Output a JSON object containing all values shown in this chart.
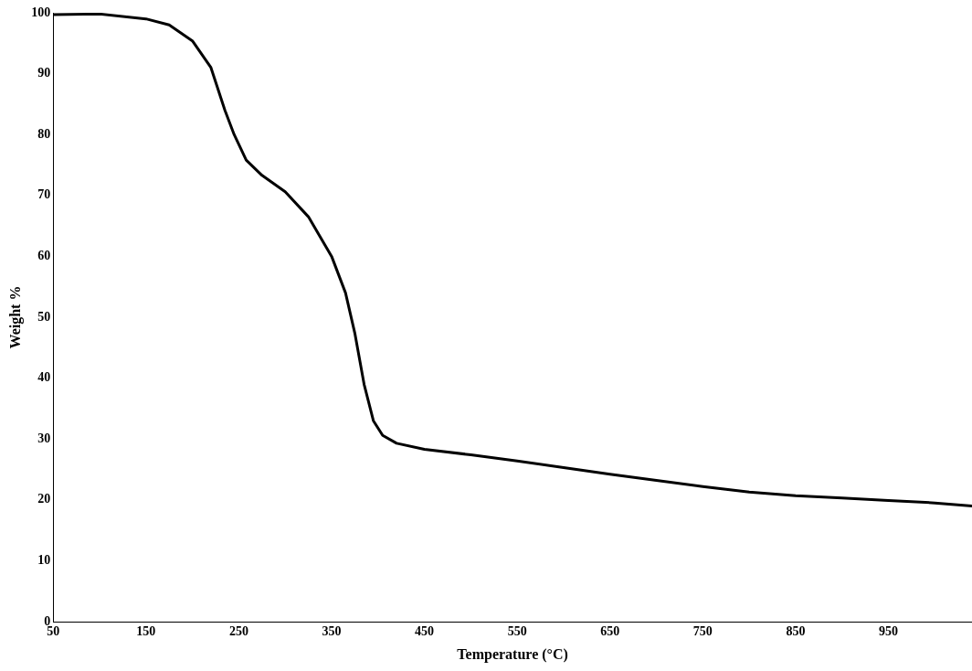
{
  "chart_data": {
    "type": "line",
    "xlabel": "Temperature (°C)",
    "ylabel": "Weight %",
    "x": [
      50,
      100,
      150,
      175,
      200,
      220,
      235,
      245,
      258,
      275,
      300,
      325,
      350,
      365,
      375,
      385,
      395,
      405,
      420,
      450,
      500,
      550,
      600,
      650,
      700,
      750,
      800,
      850,
      900,
      950,
      1000,
      1040
    ],
    "series": [
      {
        "color": "#000000",
        "values": [
          99.7,
          99.8,
          99.0,
          98.0,
          95.4,
          91,
          84,
          80,
          75.8,
          73.3,
          70.6,
          66.5,
          60,
          54,
          47.4,
          39,
          33,
          30.6,
          29.3,
          28.3,
          27.4,
          26.4,
          25.3,
          24.2,
          23.2,
          22.2,
          21.3,
          20.7,
          20.3,
          19.9,
          19.5,
          19.0
        ]
      }
    ],
    "xlim": [
      50,
      1040
    ],
    "xticks": [
      50,
      150,
      250,
      350,
      450,
      550,
      650,
      750,
      850,
      950
    ],
    "ylim": [
      0,
      100
    ],
    "yticks": [
      0,
      10,
      20,
      30,
      40,
      50,
      60,
      70,
      80,
      90,
      100
    ],
    "grid": false,
    "legend": false,
    "marker": "none",
    "line_style": "solid"
  }
}
